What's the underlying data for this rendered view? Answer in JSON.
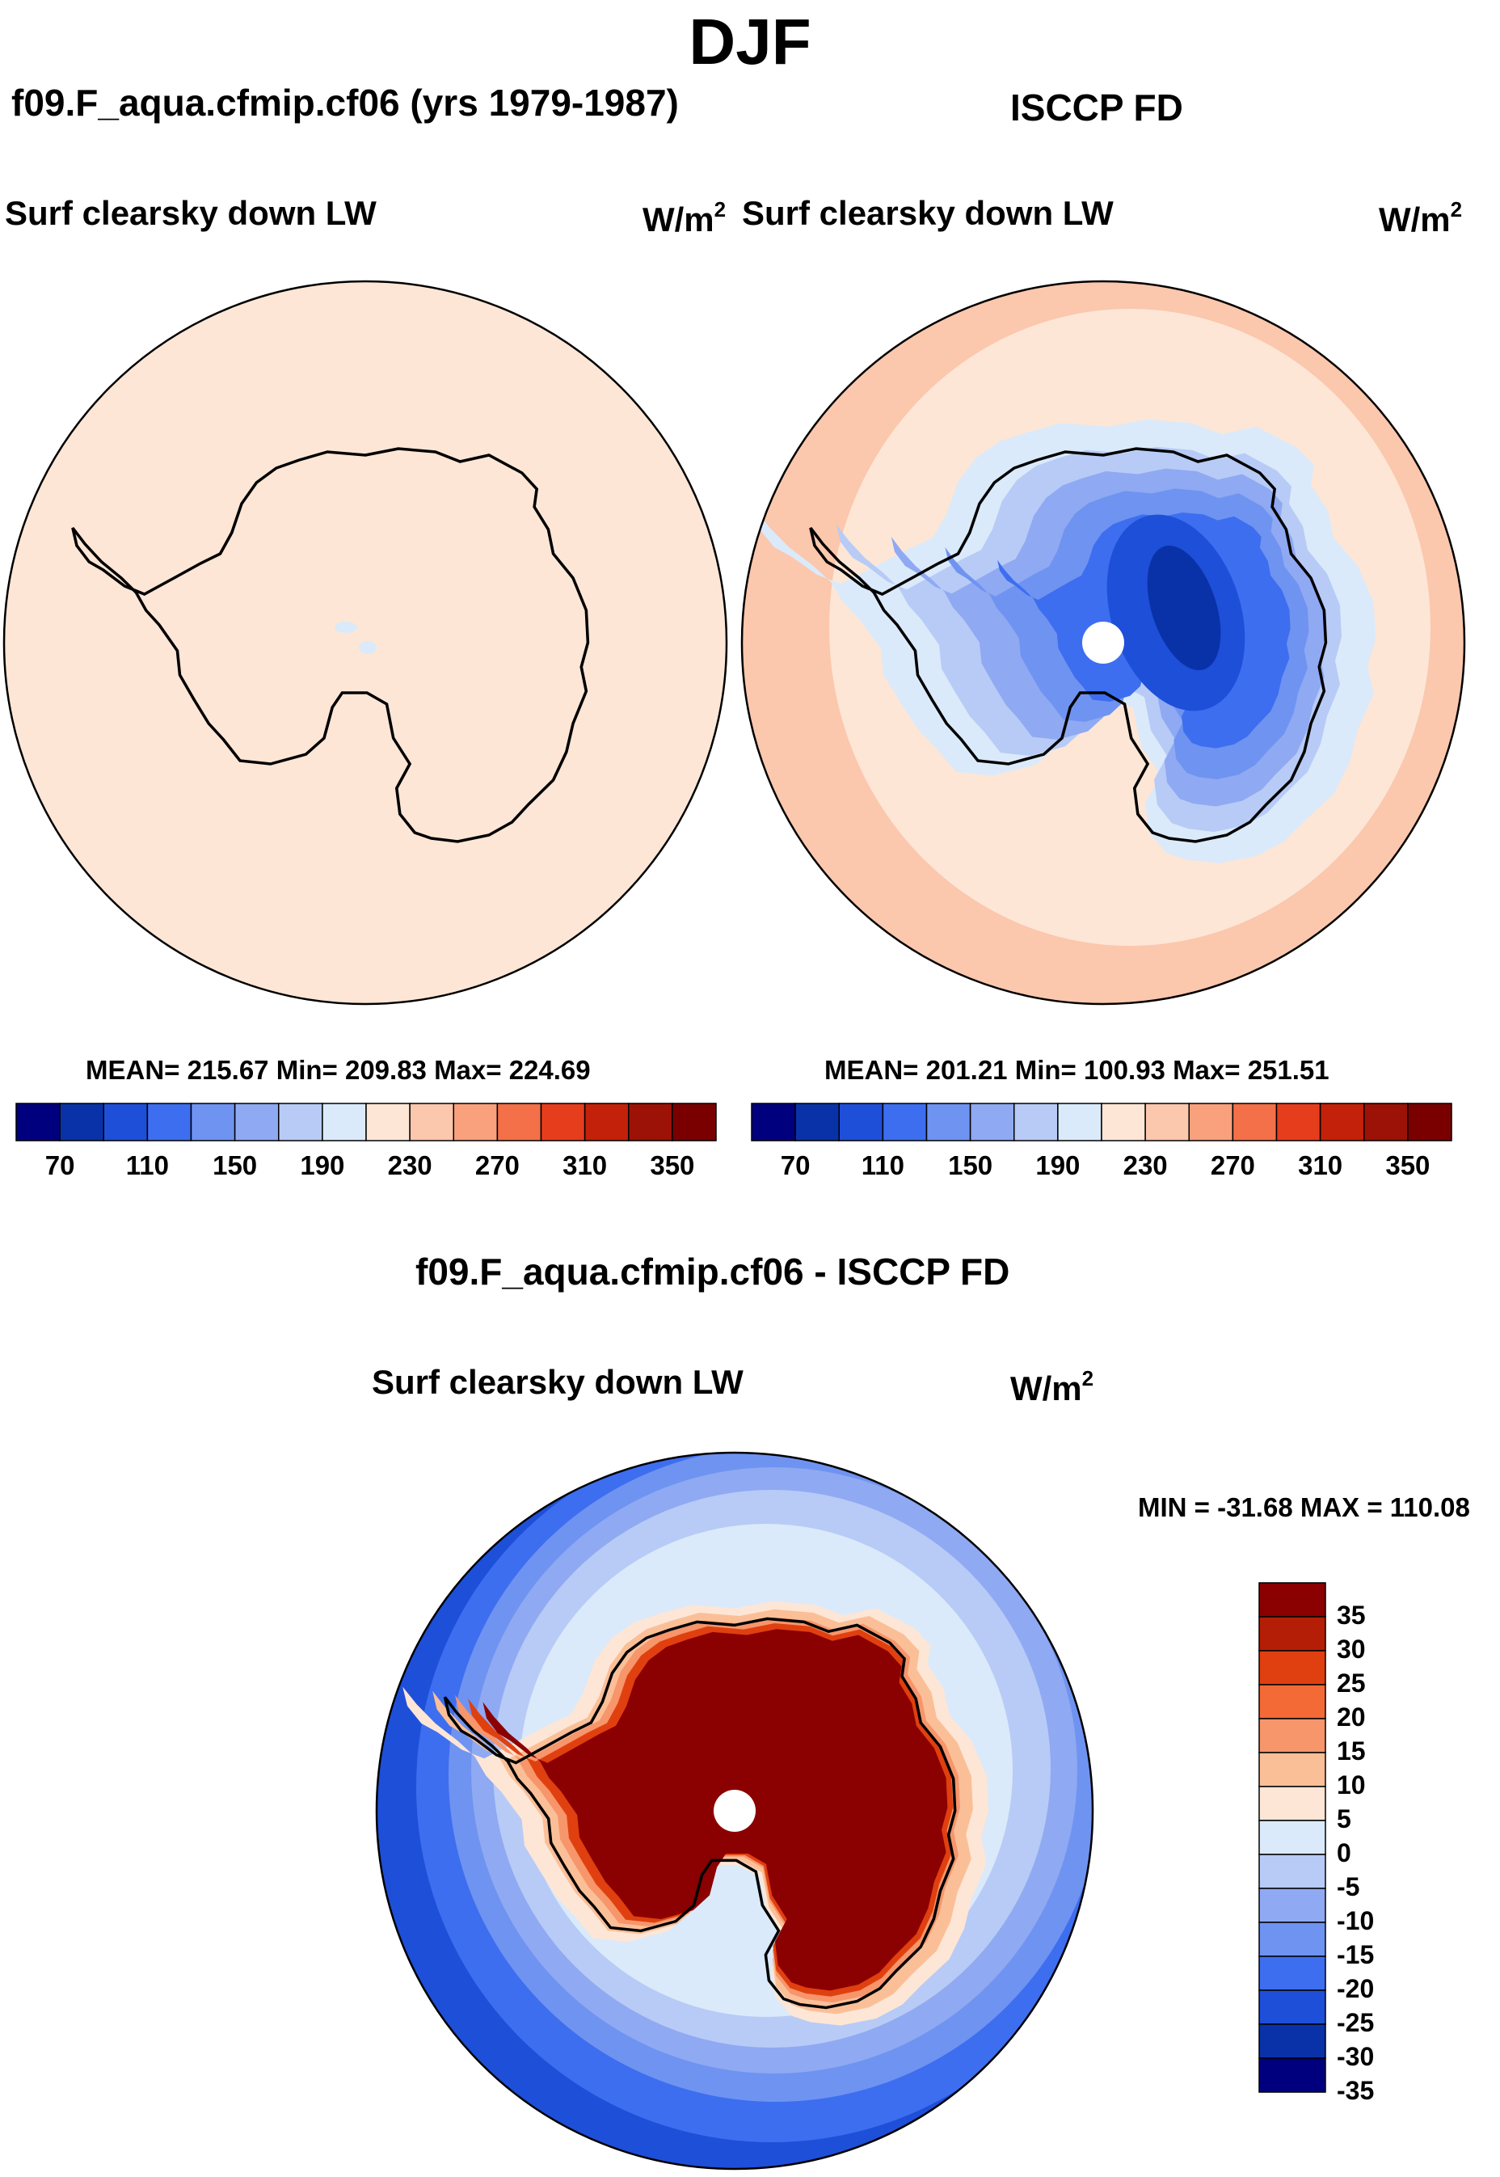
{
  "page": {
    "title": "DJF",
    "model_title": "f09.F_aqua.cfmip.cf06 (yrs 1979-1987)",
    "obs_title": "ISCCP FD",
    "diff_title": "f09.F_aqua.cfmip.cf06 - ISCCP FD"
  },
  "panels": {
    "model": {
      "variable": "Surf clearsky down LW",
      "units": "W/m",
      "units_sup": "2",
      "stats": "MEAN= 215.67  Min= 209.83  Max= 224.69"
    },
    "obs": {
      "variable": "Surf clearsky down LW",
      "units": "W/m",
      "units_sup": "2",
      "stats": "MEAN= 201.21  Min= 100.93  Max= 251.51"
    },
    "diff": {
      "variable": "Surf clearsky down LW",
      "units": "W/m",
      "units_sup": "2",
      "stats": "MIN = -31.68 MAX = 110.08"
    }
  },
  "chart_data": [
    {
      "type": "heatmap",
      "projection": "polar-stereographic-south",
      "title": "Surf clearsky down LW",
      "subtitle": "f09.F_aqua.cfmip.cf06 (yrs 1979-1987)",
      "units": "W/m2",
      "mean": 215.67,
      "min": 209.83,
      "max": 224.69,
      "levels": [
        70,
        90,
        110,
        130,
        150,
        170,
        190,
        210,
        230,
        250,
        270,
        290,
        310,
        330,
        350
      ],
      "tick_labels": [
        "70",
        "110",
        "150",
        "190",
        "230",
        "270",
        "310",
        "350"
      ],
      "colors": [
        "#00007f",
        "#0a32a8",
        "#1e4fd8",
        "#3d6ef0",
        "#6f93f0",
        "#8fa9f2",
        "#b7cbf6",
        "#daeafa",
        "#fde6d6",
        "#fbc7ad",
        "#f9a07c",
        "#f37048",
        "#e63d1d",
        "#c32109",
        "#9c1206",
        "#7a0000"
      ]
    },
    {
      "type": "heatmap",
      "projection": "polar-stereographic-south",
      "title": "Surf clearsky down LW",
      "subtitle": "ISCCP FD",
      "units": "W/m2",
      "mean": 201.21,
      "min": 100.93,
      "max": 251.51,
      "levels": [
        70,
        90,
        110,
        130,
        150,
        170,
        190,
        210,
        230,
        250,
        270,
        290,
        310,
        330,
        350
      ],
      "tick_labels": [
        "70",
        "110",
        "150",
        "190",
        "230",
        "270",
        "310",
        "350"
      ],
      "colors": [
        "#00007f",
        "#0a32a8",
        "#1e4fd8",
        "#3d6ef0",
        "#6f93f0",
        "#8fa9f2",
        "#b7cbf6",
        "#daeafa",
        "#fde6d6",
        "#fbc7ad",
        "#f9a07c",
        "#f37048",
        "#e63d1d",
        "#c32109",
        "#9c1206",
        "#7a0000"
      ]
    },
    {
      "type": "heatmap",
      "projection": "polar-stereographic-south",
      "title": "Surf clearsky down LW",
      "subtitle": "f09.F_aqua.cfmip.cf06 - ISCCP FD",
      "units": "W/m2",
      "min": -31.68,
      "max": 110.08,
      "levels": [
        -35,
        -30,
        -25,
        -20,
        -15,
        -10,
        -5,
        0,
        5,
        10,
        15,
        20,
        25,
        30,
        35
      ],
      "tick_labels": [
        "35",
        "30",
        "25",
        "20",
        "15",
        "10",
        "5",
        "0",
        "-5",
        "-10",
        "-15",
        "-20",
        "-25",
        "-30",
        "-35"
      ],
      "colors_top_to_bottom": [
        "#8b0000",
        "#b51e06",
        "#e0400f",
        "#f36a36",
        "#f7956b",
        "#fbbf98",
        "#fde6d6",
        "#daeafa",
        "#b7cbf6",
        "#8fa9f2",
        "#6f93f0",
        "#3d6ef0",
        "#1e4fd8",
        "#0a32a8",
        "#00007f"
      ]
    }
  ]
}
